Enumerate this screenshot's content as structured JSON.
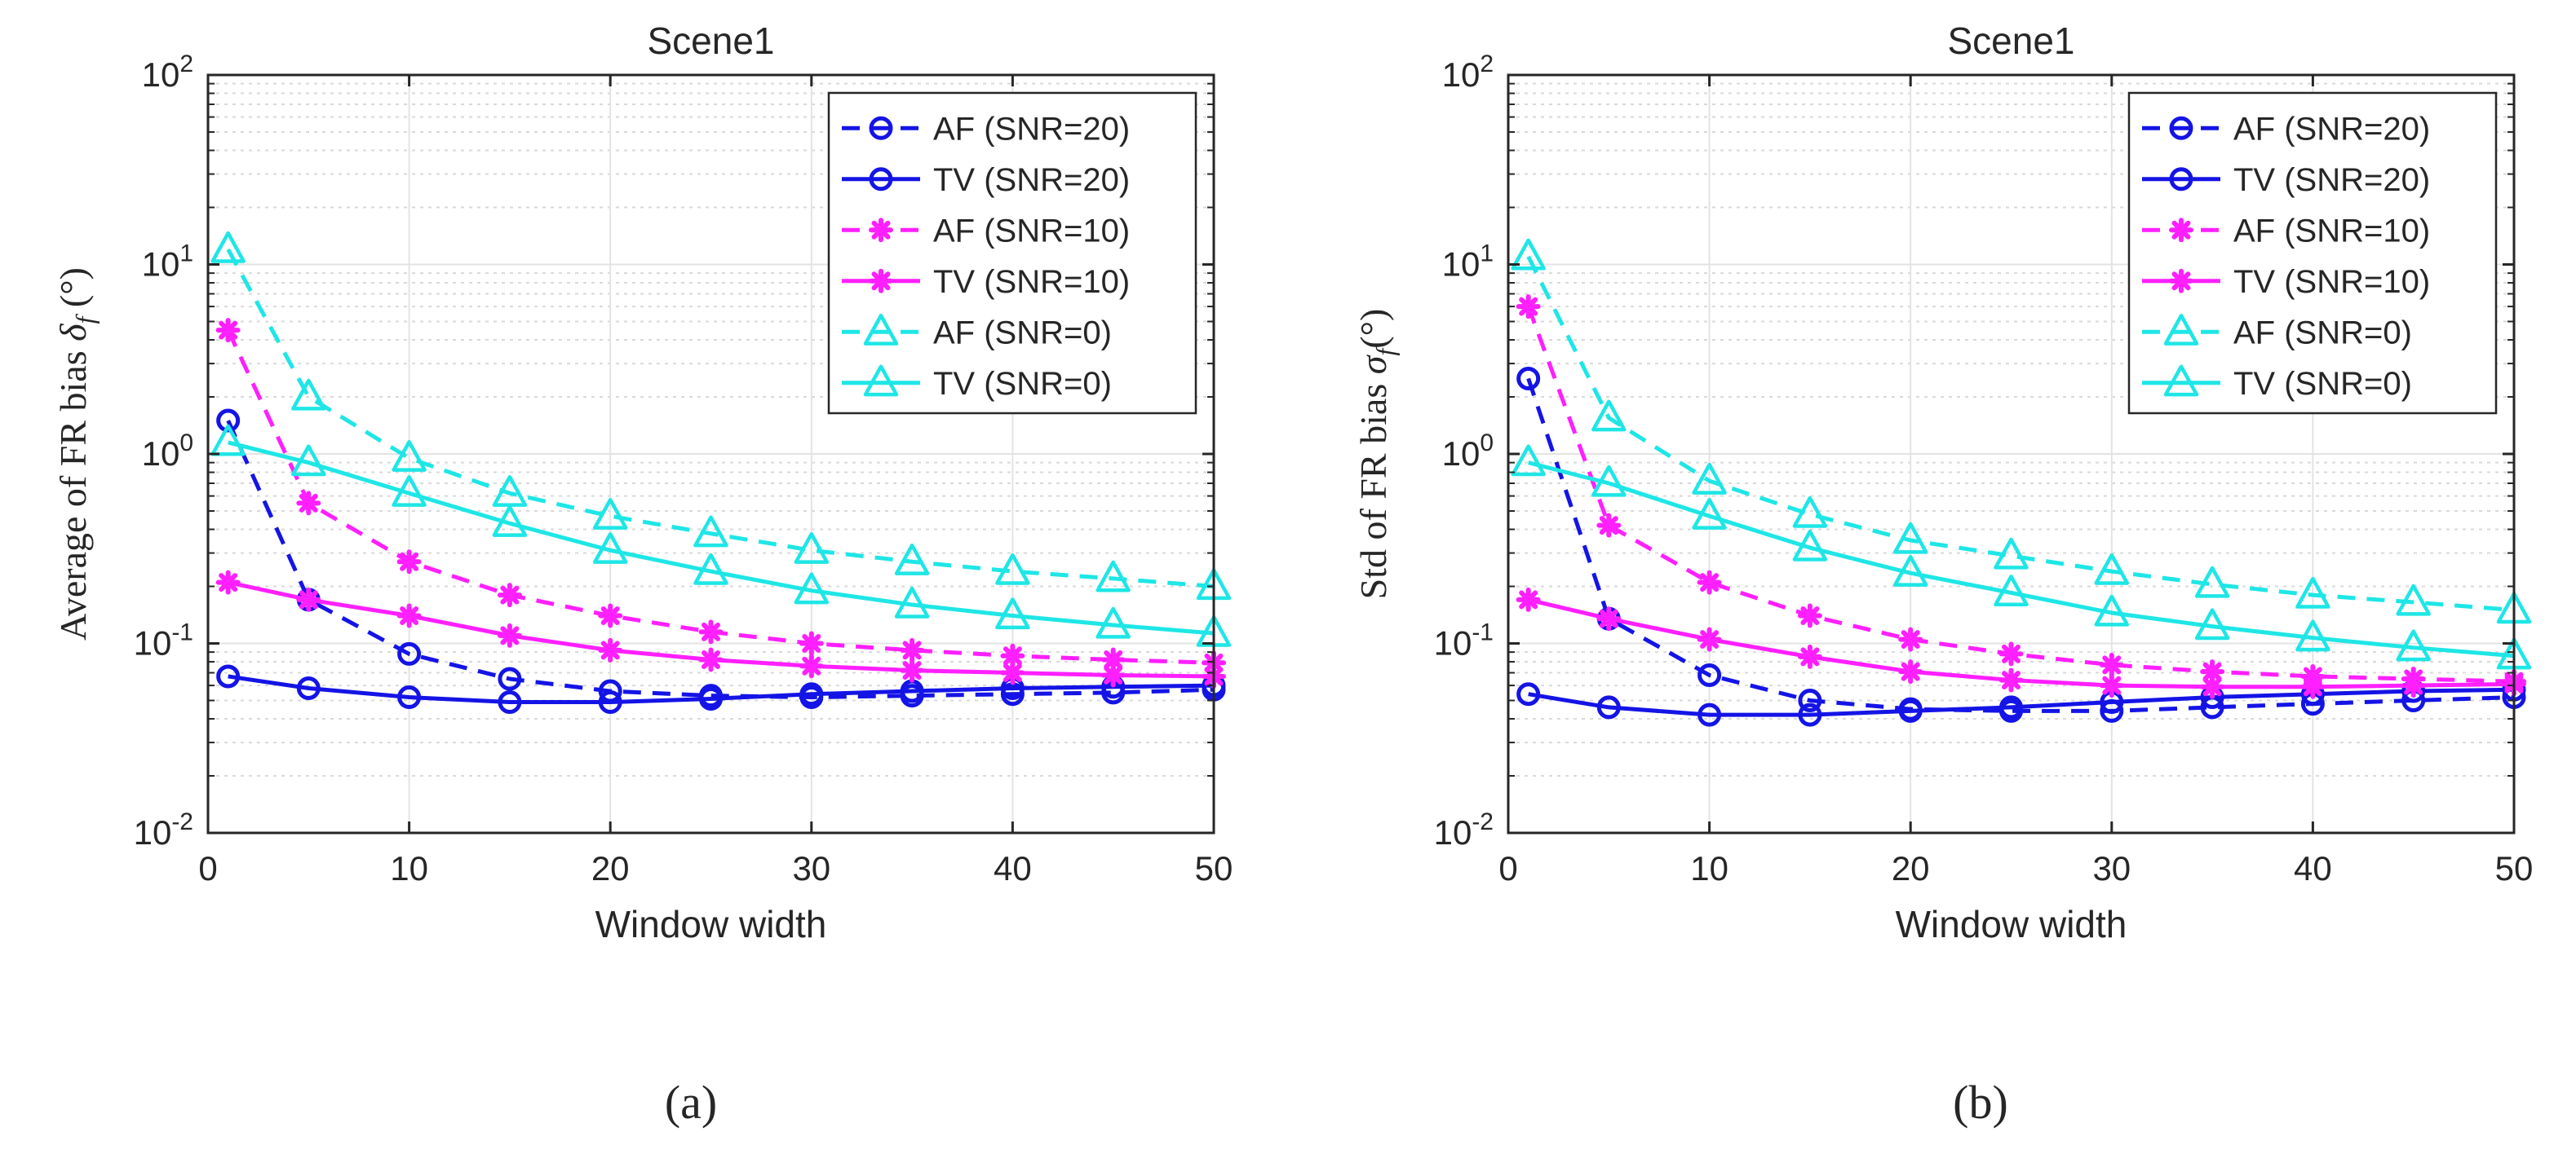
{
  "chart_data": [
    {
      "type": "line",
      "panel_label": "(a)",
      "title": "Scene1",
      "xlabel": "Window width",
      "ylabel_main": "Average of FR bias ",
      "ylabel_symbol": "δ",
      "ylabel_sub": "f",
      "ylabel_unit": " (°)",
      "xscale": "linear",
      "yscale": "log",
      "xlim": [
        0,
        50
      ],
      "ylim": [
        0.01,
        100
      ],
      "xticks": [
        0,
        10,
        20,
        30,
        40,
        50
      ],
      "xtick_labels": [
        "0",
        "10",
        "20",
        "30",
        "40",
        "50"
      ],
      "yticks": [
        0.01,
        0.1,
        1,
        10,
        100
      ],
      "ytick_bases": [
        "10",
        "10",
        "10",
        "10",
        "10"
      ],
      "ytick_exps": [
        "-2",
        "-1",
        "0",
        "1",
        "2"
      ],
      "grid": true,
      "legend_position": "top-right",
      "x": [
        1,
        5,
        10,
        15,
        20,
        25,
        30,
        35,
        40,
        45,
        50
      ],
      "series": [
        {
          "name": "AF (SNR=20)",
          "color": "#1414e6",
          "dash": "dashed",
          "marker": "circle",
          "values": [
            1.5,
            0.17,
            0.088,
            0.065,
            0.056,
            0.053,
            0.052,
            0.053,
            0.054,
            0.055,
            0.057
          ]
        },
        {
          "name": "TV (SNR=20)",
          "color": "#1414e6",
          "dash": "solid",
          "marker": "circle",
          "values": [
            0.067,
            0.058,
            0.052,
            0.049,
            0.049,
            0.051,
            0.054,
            0.056,
            0.058,
            0.059,
            0.06
          ]
        },
        {
          "name": "AF (SNR=10)",
          "color": "#ff1fff",
          "dash": "dashed",
          "marker": "star",
          "values": [
            4.5,
            0.55,
            0.27,
            0.18,
            0.14,
            0.115,
            0.1,
            0.092,
            0.086,
            0.082,
            0.079
          ]
        },
        {
          "name": "TV (SNR=10)",
          "color": "#ff1fff",
          "dash": "solid",
          "marker": "star",
          "values": [
            0.21,
            0.17,
            0.14,
            0.11,
            0.092,
            0.082,
            0.076,
            0.072,
            0.07,
            0.068,
            0.067
          ]
        },
        {
          "name": "AF (SNR=0)",
          "color": "#1fe6e6",
          "dash": "dashed",
          "marker": "triangle",
          "values": [
            12,
            2.0,
            0.95,
            0.62,
            0.47,
            0.38,
            0.31,
            0.27,
            0.24,
            0.22,
            0.2
          ]
        },
        {
          "name": "TV (SNR=0)",
          "color": "#1fe6e6",
          "dash": "solid",
          "marker": "triangle",
          "values": [
            1.15,
            0.9,
            0.62,
            0.43,
            0.31,
            0.24,
            0.19,
            0.16,
            0.14,
            0.125,
            0.113
          ]
        }
      ]
    },
    {
      "type": "line",
      "panel_label": "(b)",
      "title": "Scene1",
      "xlabel": "Window width",
      "ylabel_main": "Std of FR bias ",
      "ylabel_symbol": "σ",
      "ylabel_sub": "f",
      "ylabel_unit": "(°)",
      "xscale": "linear",
      "yscale": "log",
      "xlim": [
        0,
        50
      ],
      "ylim": [
        0.01,
        100
      ],
      "xticks": [
        0,
        10,
        20,
        30,
        40,
        50
      ],
      "xtick_labels": [
        "0",
        "10",
        "20",
        "30",
        "40",
        "50"
      ],
      "yticks": [
        0.01,
        0.1,
        1,
        10,
        100
      ],
      "ytick_bases": [
        "10",
        "10",
        "10",
        "10",
        "10"
      ],
      "ytick_exps": [
        "-2",
        "-1",
        "0",
        "1",
        "2"
      ],
      "grid": true,
      "legend_position": "top-right",
      "x": [
        1,
        5,
        10,
        15,
        20,
        25,
        30,
        35,
        40,
        45,
        50
      ],
      "series": [
        {
          "name": "AF (SNR=20)",
          "color": "#1414e6",
          "dash": "dashed",
          "marker": "circle",
          "values": [
            2.5,
            0.135,
            0.068,
            0.05,
            0.045,
            0.044,
            0.044,
            0.046,
            0.048,
            0.05,
            0.052
          ]
        },
        {
          "name": "TV (SNR=20)",
          "color": "#1414e6",
          "dash": "solid",
          "marker": "circle",
          "values": [
            0.054,
            0.046,
            0.042,
            0.042,
            0.044,
            0.046,
            0.049,
            0.052,
            0.054,
            0.056,
            0.057
          ]
        },
        {
          "name": "AF (SNR=10)",
          "color": "#ff1fff",
          "dash": "dashed",
          "marker": "star",
          "values": [
            6.0,
            0.42,
            0.21,
            0.14,
            0.105,
            0.088,
            0.077,
            0.071,
            0.067,
            0.065,
            0.063
          ]
        },
        {
          "name": "TV (SNR=10)",
          "color": "#ff1fff",
          "dash": "solid",
          "marker": "star",
          "values": [
            0.17,
            0.135,
            0.105,
            0.085,
            0.071,
            0.064,
            0.06,
            0.059,
            0.059,
            0.06,
            0.061
          ]
        },
        {
          "name": "AF (SNR=0)",
          "color": "#1fe6e6",
          "dash": "dashed",
          "marker": "triangle",
          "values": [
            11,
            1.55,
            0.72,
            0.48,
            0.35,
            0.29,
            0.24,
            0.205,
            0.18,
            0.165,
            0.15
          ]
        },
        {
          "name": "TV (SNR=0)",
          "color": "#1fe6e6",
          "dash": "solid",
          "marker": "triangle",
          "values": [
            0.9,
            0.7,
            0.47,
            0.32,
            0.235,
            0.185,
            0.145,
            0.123,
            0.107,
            0.095,
            0.086
          ]
        }
      ]
    }
  ]
}
